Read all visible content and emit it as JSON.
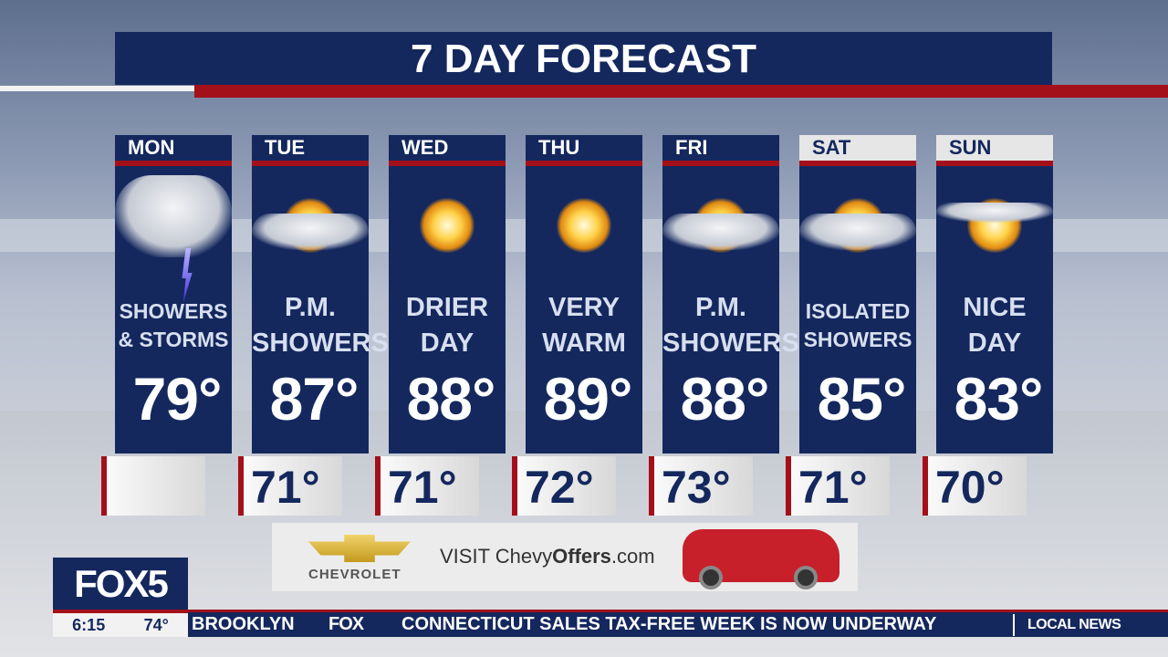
{
  "title": "7 DAY FORECAST",
  "days": [
    {
      "day": "MON",
      "icon": "thunderstorm-icon",
      "desc": [
        "SHOWERS",
        "& STORMS"
      ],
      "high": "79°",
      "low": ""
    },
    {
      "day": "TUE",
      "icon": "partly-cloudy-icon",
      "desc": [
        "P.M.",
        "SHOWERS"
      ],
      "high": "87°",
      "low": "71°"
    },
    {
      "day": "WED",
      "icon": "sun-icon",
      "desc": [
        "DRIER",
        "DAY"
      ],
      "high": "88°",
      "low": "71°"
    },
    {
      "day": "THU",
      "icon": "sun-icon",
      "desc": [
        "VERY",
        "WARM"
      ],
      "high": "89°",
      "low": "72°"
    },
    {
      "day": "FRI",
      "icon": "partly-cloudy-icon",
      "desc": [
        "P.M.",
        "SHOWERS"
      ],
      "high": "88°",
      "low": "73°"
    },
    {
      "day": "SAT",
      "icon": "partly-cloudy-icon",
      "desc": [
        "ISOLATED",
        "SHOWERS"
      ],
      "high": "85°",
      "low": "71°"
    },
    {
      "day": "SUN",
      "icon": "mostly-sunny-icon",
      "desc": [
        "NICE",
        "DAY"
      ],
      "high": "83°",
      "low": "70°"
    }
  ],
  "ad": {
    "brand": "CHEVROLET",
    "visit": "VISIT ",
    "site_a": "Chevy",
    "site_b": "Offers",
    "site_c": ".com"
  },
  "station": {
    "logo": "FOX5",
    "time": "6:15",
    "temp": "74°"
  },
  "ticker": {
    "location": "BROOKLYN",
    "network": "FOX",
    "headline": "CONNECTICUT SALES TAX-FREE WEEK IS NOW UNDERWAY",
    "segment": "LOCAL NEWS"
  },
  "colors": {
    "navy": "#14285e",
    "red": "#a3101a"
  }
}
